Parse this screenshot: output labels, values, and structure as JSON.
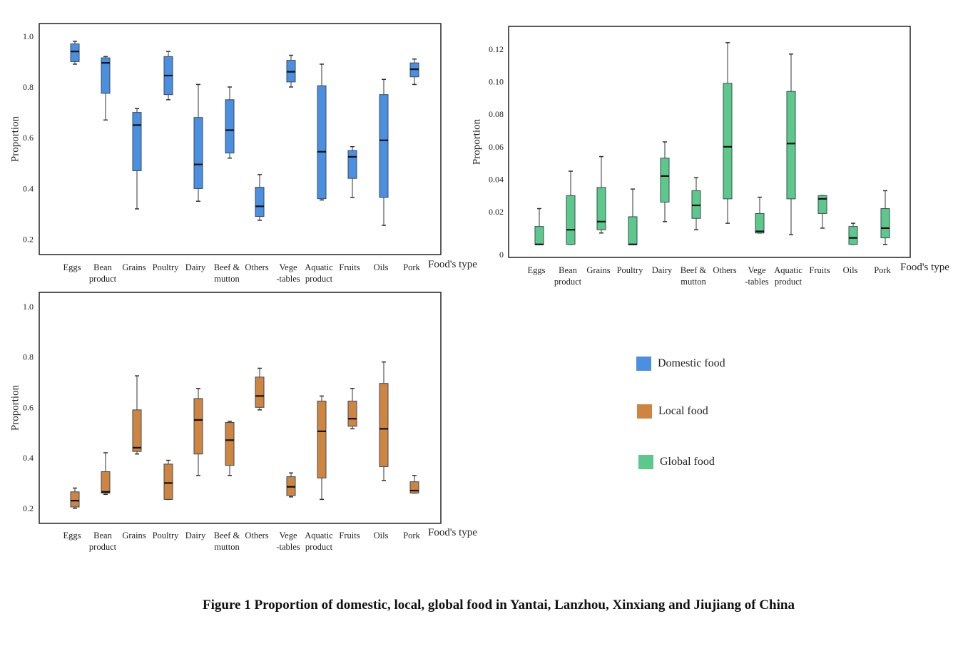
{
  "categories": [
    [
      "Eggs",
      ""
    ],
    [
      "Bean",
      "product"
    ],
    [
      "Grains",
      ""
    ],
    [
      "Poultry",
      ""
    ],
    [
      "Dairy",
      ""
    ],
    [
      "Beef &",
      "mutton"
    ],
    [
      "Others",
      ""
    ],
    [
      "Vege",
      "-tables"
    ],
    [
      "Aquatic",
      "product"
    ],
    [
      "Fruits",
      ""
    ],
    [
      "Oils",
      ""
    ],
    [
      "Pork",
      ""
    ]
  ],
  "legend": [
    {
      "label": "Domestic food",
      "color": "#4a8fe0"
    },
    {
      "label": "Local food",
      "color": "#cd8540"
    },
    {
      "label": "Global food",
      "color": "#5cc98a"
    }
  ],
  "caption": "Figure 1  Proportion of domestic, local, global food in Yantai, Lanzhou, Xinxiang and Jiujiang of China",
  "chart_data": [
    {
      "type": "box",
      "series_name": "Domestic food",
      "color": "#4a8fe0",
      "ylabel": "Proportion",
      "xlabel": "Food's type",
      "yticks": [
        0.2,
        0.4,
        0.6,
        0.8,
        1.0
      ],
      "ytick_labels": [
        "0.2",
        "0.4",
        "0.6",
        "0.8",
        "1.0"
      ],
      "ylim": [
        0.14,
        1.05
      ],
      "grid": false,
      "boxes": [
        [
          0.89,
          0.9,
          0.94,
          0.97,
          0.98
        ],
        [
          0.67,
          0.775,
          0.895,
          0.915,
          0.92
        ],
        [
          0.32,
          0.47,
          0.65,
          0.7,
          0.715
        ],
        [
          0.75,
          0.77,
          0.845,
          0.92,
          0.94
        ],
        [
          0.35,
          0.4,
          0.495,
          0.68,
          0.81
        ],
        [
          0.52,
          0.54,
          0.63,
          0.75,
          0.8
        ],
        [
          0.275,
          0.29,
          0.33,
          0.405,
          0.455
        ],
        [
          0.8,
          0.82,
          0.86,
          0.905,
          0.925
        ],
        [
          0.355,
          0.36,
          0.545,
          0.805,
          0.89
        ],
        [
          0.365,
          0.44,
          0.525,
          0.55,
          0.565
        ],
        [
          0.255,
          0.365,
          0.59,
          0.77,
          0.83
        ],
        [
          0.81,
          0.84,
          0.87,
          0.895,
          0.91
        ]
      ]
    },
    {
      "type": "box",
      "series_name": "Global food",
      "color": "#5cc98a",
      "ylabel": "Proportion",
      "xlabel": "Food's type",
      "yticks": [
        0,
        0.02,
        0.04,
        0.06,
        0.08,
        0.1,
        0.12
      ],
      "ytick_labels": [
        "0",
        "0.02",
        "0.04",
        "0.06",
        "0.08",
        "0.10",
        "0.12"
      ],
      "ylim": [
        -0.008,
        0.134
      ],
      "grid": false,
      "boxes": [
        [
          0,
          0,
          0,
          0.011,
          0.022
        ],
        [
          0,
          0,
          0.009,
          0.03,
          0.045
        ],
        [
          0.007,
          0.009,
          0.014,
          0.035,
          0.054
        ],
        [
          0,
          0,
          0,
          0.017,
          0.034
        ],
        [
          0.014,
          0.026,
          0.042,
          0.053,
          0.063
        ],
        [
          0.009,
          0.016,
          0.024,
          0.033,
          0.041
        ],
        [
          0.013,
          0.028,
          0.06,
          0.099,
          0.124
        ],
        [
          0.007,
          0.007,
          0.008,
          0.019,
          0.029
        ],
        [
          0.006,
          0.028,
          0.062,
          0.094,
          0.117
        ],
        [
          0.01,
          0.019,
          0.028,
          0.03,
          0.03
        ],
        [
          0,
          0,
          0.004,
          0.011,
          0.013
        ],
        [
          0,
          0.004,
          0.01,
          0.022,
          0.033
        ]
      ]
    },
    {
      "type": "box",
      "series_name": "Local food",
      "color": "#cd8540",
      "ylabel": "Proportion",
      "xlabel": "Food's type",
      "yticks": [
        0.2,
        0.4,
        0.6,
        0.8,
        1.0
      ],
      "ytick_labels": [
        "0.2",
        "0.4",
        "0.6",
        "0.8",
        "1.0"
      ],
      "ylim": [
        0.14,
        1.056
      ],
      "grid": false,
      "boxes": [
        [
          0.2,
          0.205,
          0.23,
          0.265,
          0.28
        ],
        [
          0.255,
          0.26,
          0.265,
          0.345,
          0.42
        ],
        [
          0.415,
          0.425,
          0.44,
          0.59,
          0.725
        ],
        [
          0.235,
          0.235,
          0.3,
          0.375,
          0.39
        ],
        [
          0.33,
          0.415,
          0.55,
          0.635,
          0.675
        ],
        [
          0.33,
          0.37,
          0.47,
          0.54,
          0.545
        ],
        [
          0.59,
          0.6,
          0.645,
          0.72,
          0.755
        ],
        [
          0.245,
          0.25,
          0.285,
          0.325,
          0.34
        ],
        [
          0.235,
          0.32,
          0.505,
          0.625,
          0.645
        ],
        [
          0.515,
          0.525,
          0.555,
          0.625,
          0.675
        ],
        [
          0.31,
          0.365,
          0.515,
          0.695,
          0.78
        ],
        [
          0.26,
          0.26,
          0.27,
          0.305,
          0.33
        ]
      ]
    }
  ]
}
